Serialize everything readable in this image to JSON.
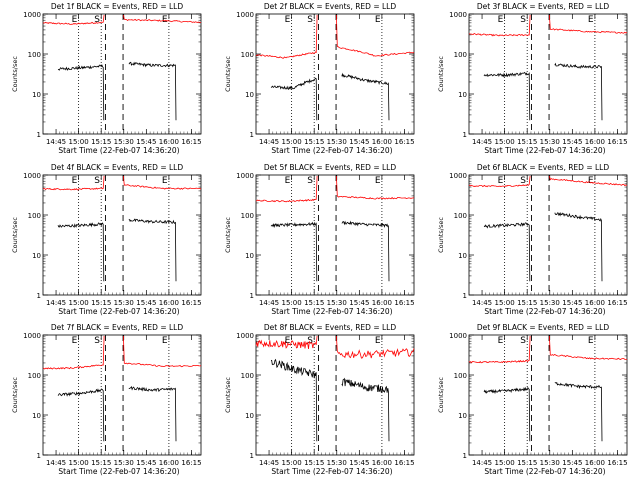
{
  "chart_data": [
    {
      "type": "line",
      "title": "Det 1f BLACK = Events, RED = LLD",
      "xlabel": "Start Time (22-Feb-07 14:36:20)",
      "ylabel": "Counts/sec",
      "ylim": [
        1,
        1000
      ],
      "log_y": true,
      "x_ticks": [
        "14:45",
        "15:00",
        "15:15",
        "15:30",
        "15:45",
        "16:00",
        "16:15"
      ],
      "y_ticks": [
        "1",
        "10",
        "100",
        "1000"
      ],
      "markers": [
        "E",
        "S",
        "E"
      ],
      "series": [
        {
          "name": "LLD",
          "color": "#ff0000",
          "before_gap": {
            "start": 600,
            "mid": 560,
            "end": 620
          },
          "after_gap": {
            "start": 720,
            "mid": 680,
            "end": 620
          }
        },
        {
          "name": "Events",
          "color": "#000000",
          "before_gap": {
            "start": 42,
            "mid": 45,
            "end": 50
          },
          "after_gap": {
            "start": 58,
            "mid": 52,
            "end": 52
          }
        }
      ]
    },
    {
      "type": "line",
      "title": "Det 2f BLACK = Events, RED = LLD",
      "xlabel": "Start Time (22-Feb-07 14:36:20)",
      "ylabel": "Counts/sec",
      "ylim": [
        1,
        1000
      ],
      "log_y": true,
      "x_ticks": [
        "14:45",
        "15:00",
        "15:15",
        "15:30",
        "15:45",
        "16:00",
        "16:15"
      ],
      "y_ticks": [
        "1",
        "10",
        "100",
        "1000"
      ],
      "markers": [
        "E",
        "S",
        "E"
      ],
      "series": [
        {
          "name": "LLD",
          "color": "#ff0000",
          "before_gap": {
            "start": 95,
            "mid": 80,
            "end": 110
          },
          "after_gap": {
            "start": 150,
            "mid": 90,
            "end": 110
          }
        },
        {
          "name": "Events",
          "color": "#000000",
          "before_gap": {
            "start": 15,
            "mid": 14,
            "end": 24
          },
          "after_gap": {
            "start": 30,
            "mid": 22,
            "end": 18
          }
        }
      ]
    },
    {
      "type": "line",
      "title": "Det 3f BLACK = Events, RED = LLD",
      "xlabel": "Start Time (22-Feb-07 14:36:20)",
      "ylabel": "Counts/sec",
      "ylim": [
        1,
        1000
      ],
      "log_y": true,
      "x_ticks": [
        "14:45",
        "15:00",
        "15:15",
        "15:30",
        "15:45",
        "16:00",
        "16:15"
      ],
      "y_ticks": [
        "1",
        "10",
        "100",
        "1000"
      ],
      "markers": [
        "E",
        "S",
        "E"
      ],
      "series": [
        {
          "name": "LLD",
          "color": "#ff0000",
          "before_gap": {
            "start": 320,
            "mid": 290,
            "end": 300
          },
          "after_gap": {
            "start": 420,
            "mid": 360,
            "end": 340
          }
        },
        {
          "name": "Events",
          "color": "#000000",
          "before_gap": {
            "start": 30,
            "mid": 30,
            "end": 33
          },
          "after_gap": {
            "start": 55,
            "mid": 48,
            "end": 48
          }
        }
      ]
    },
    {
      "type": "line",
      "title": "Det 4f BLACK = Events, RED = LLD",
      "xlabel": "Start Time (22-Feb-07 14:36:20)",
      "ylabel": "Counts/sec",
      "ylim": [
        1,
        1000
      ],
      "log_y": true,
      "x_ticks": [
        "14:45",
        "15:00",
        "15:15",
        "15:30",
        "15:45",
        "16:00",
        "16:15"
      ],
      "y_ticks": [
        "1",
        "10",
        "100",
        "1000"
      ],
      "markers": [
        "E",
        "S",
        "E"
      ],
      "series": [
        {
          "name": "LLD",
          "color": "#ff0000",
          "before_gap": {
            "start": 450,
            "mid": 440,
            "end": 460
          },
          "after_gap": {
            "start": 560,
            "mid": 460,
            "end": 460
          }
        },
        {
          "name": "Events",
          "color": "#000000",
          "before_gap": {
            "start": 52,
            "mid": 55,
            "end": 60
          },
          "after_gap": {
            "start": 75,
            "mid": 68,
            "end": 66
          }
        }
      ]
    },
    {
      "type": "line",
      "title": "Det 5f BLACK = Events, RED = LLD",
      "xlabel": "Start Time (22-Feb-07 14:36:20)",
      "ylabel": "Counts/sec",
      "ylim": [
        1,
        1000
      ],
      "log_y": true,
      "x_ticks": [
        "14:45",
        "15:00",
        "15:15",
        "15:30",
        "15:45",
        "16:00",
        "16:15"
      ],
      "y_ticks": [
        "1",
        "10",
        "100",
        "1000"
      ],
      "markers": [
        "E",
        "S",
        "E"
      ],
      "series": [
        {
          "name": "LLD",
          "color": "#ff0000",
          "before_gap": {
            "start": 230,
            "mid": 220,
            "end": 240
          },
          "after_gap": {
            "start": 290,
            "mid": 260,
            "end": 270
          }
        },
        {
          "name": "Events",
          "color": "#000000",
          "before_gap": {
            "start": 55,
            "mid": 57,
            "end": 60
          },
          "after_gap": {
            "start": 65,
            "mid": 58,
            "end": 55
          }
        }
      ]
    },
    {
      "type": "line",
      "title": "Det 6f BLACK = Events, RED = LLD",
      "xlabel": "Start Time (22-Feb-07 14:36:20)",
      "ylabel": "Counts/sec",
      "ylim": [
        1,
        1000
      ],
      "log_y": true,
      "x_ticks": [
        "14:45",
        "15:00",
        "15:15",
        "15:30",
        "15:45",
        "16:00",
        "16:15"
      ],
      "y_ticks": [
        "1",
        "10",
        "100",
        "1000"
      ],
      "markers": [
        "E",
        "S",
        "E"
      ],
      "series": [
        {
          "name": "LLD",
          "color": "#ff0000",
          "before_gap": {
            "start": 540,
            "mid": 520,
            "end": 560
          },
          "after_gap": {
            "start": 800,
            "mid": 650,
            "end": 560
          }
        },
        {
          "name": "Events",
          "color": "#000000",
          "before_gap": {
            "start": 52,
            "mid": 55,
            "end": 60
          },
          "after_gap": {
            "start": 110,
            "mid": 90,
            "end": 75
          }
        }
      ]
    },
    {
      "type": "line",
      "title": "Det 7f BLACK = Events, RED = LLD",
      "xlabel": "Start Time (22-Feb-07 14:36:20)",
      "ylabel": "Counts/sec",
      "ylim": [
        1,
        1000
      ],
      "log_y": true,
      "x_ticks": [
        "14:45",
        "15:00",
        "15:15",
        "15:30",
        "15:45",
        "16:00",
        "16:15"
      ],
      "y_ticks": [
        "1",
        "10",
        "100",
        "1000"
      ],
      "markers": [
        "E",
        "S",
        "E"
      ],
      "series": [
        {
          "name": "LLD",
          "color": "#ff0000",
          "before_gap": {
            "start": 145,
            "mid": 150,
            "end": 180
          },
          "after_gap": {
            "start": 200,
            "mid": 165,
            "end": 170
          }
        },
        {
          "name": "Events",
          "color": "#000000",
          "before_gap": {
            "start": 32,
            "mid": 35,
            "end": 42
          },
          "after_gap": {
            "start": 48,
            "mid": 42,
            "end": 45
          }
        }
      ]
    },
    {
      "type": "line",
      "title": "Det 8f BLACK = Events, RED = LLD",
      "xlabel": "Start Time (22-Feb-07 14:36:20)",
      "ylabel": "Counts/sec",
      "ylim": [
        1,
        1000
      ],
      "log_y": true,
      "x_ticks": [
        "14:45",
        "15:00",
        "15:15",
        "15:30",
        "15:45",
        "16:00",
        "16:15"
      ],
      "y_ticks": [
        "1",
        "10",
        "100",
        "1000"
      ],
      "markers": [
        "E",
        "S",
        "E"
      ],
      "series": [
        {
          "name": "LLD",
          "color": "#ff0000",
          "before_gap": {
            "start": 650,
            "mid": 600,
            "end": 550
          },
          "after_gap": {
            "start": 330,
            "mid": 340,
            "end": 380
          }
        },
        {
          "name": "Events",
          "color": "#000000",
          "before_gap": {
            "start": 220,
            "mid": 140,
            "end": 100
          },
          "after_gap": {
            "start": 70,
            "mid": 50,
            "end": 45
          }
        }
      ]
    },
    {
      "type": "line",
      "title": "Det 9f BLACK = Events, RED = LLD",
      "xlabel": "Start Time (22-Feb-07 14:36:20)",
      "ylabel": "Counts/sec",
      "ylim": [
        1,
        1000
      ],
      "log_y": true,
      "x_ticks": [
        "14:45",
        "15:00",
        "15:15",
        "15:30",
        "15:45",
        "16:00",
        "16:15"
      ],
      "y_ticks": [
        "1",
        "10",
        "100",
        "1000"
      ],
      "markers": [
        "E",
        "S",
        "E"
      ],
      "series": [
        {
          "name": "LLD",
          "color": "#ff0000",
          "before_gap": {
            "start": 210,
            "mid": 210,
            "end": 225
          },
          "after_gap": {
            "start": 320,
            "mid": 260,
            "end": 250
          }
        },
        {
          "name": "Events",
          "color": "#000000",
          "before_gap": {
            "start": 38,
            "mid": 40,
            "end": 45
          },
          "after_gap": {
            "start": 62,
            "mid": 52,
            "end": 50
          }
        }
      ]
    }
  ]
}
